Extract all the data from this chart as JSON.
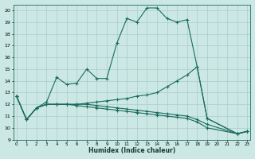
{
  "xlabel": "Humidex (Indice chaleur)",
  "bg_color": "#cce8e4",
  "grid_color": "#aaccca",
  "line_color": "#1a6b5e",
  "xlim": [
    0,
    23
  ],
  "ylim": [
    9,
    20.5
  ],
  "series0_x": [
    0,
    1,
    2,
    3,
    4,
    5,
    6,
    7,
    8,
    9,
    10,
    11,
    12,
    13,
    14,
    15,
    16,
    17,
    18,
    19,
    22,
    23
  ],
  "series0_y": [
    12.7,
    10.7,
    11.7,
    12.2,
    14.3,
    13.7,
    13.8,
    15.0,
    14.2,
    14.2,
    17.2,
    19.3,
    19.0,
    20.2,
    20.2,
    19.3,
    19.0,
    19.2,
    15.2,
    10.8,
    9.5,
    9.7
  ],
  "series1_x": [
    0,
    1,
    2,
    3,
    4,
    5,
    6,
    7,
    8,
    9,
    10,
    11,
    12,
    13,
    14,
    15,
    16,
    17,
    18,
    19,
    22,
    23
  ],
  "series1_y": [
    12.7,
    10.7,
    11.7,
    12.0,
    12.0,
    12.0,
    11.9,
    11.8,
    11.7,
    11.6,
    11.5,
    11.4,
    11.3,
    11.2,
    11.1,
    11.0,
    10.9,
    10.8,
    10.5,
    10.0,
    9.5,
    9.7
  ],
  "series2_x": [
    0,
    1,
    2,
    3,
    4,
    5,
    6,
    7,
    8,
    9,
    10,
    11,
    12,
    13,
    14,
    15,
    16,
    17,
    18,
    19,
    22,
    23
  ],
  "series2_y": [
    12.7,
    10.7,
    11.7,
    12.0,
    12.0,
    12.0,
    12.0,
    12.0,
    11.9,
    11.8,
    11.7,
    11.6,
    11.5,
    11.4,
    11.3,
    11.2,
    11.1,
    11.0,
    10.7,
    10.3,
    9.5,
    9.7
  ],
  "series3_x": [
    0,
    1,
    2,
    3,
    4,
    5,
    6,
    7,
    8,
    9,
    10,
    11,
    12,
    13,
    14,
    15,
    16,
    17,
    18,
    19,
    22,
    23
  ],
  "series3_y": [
    12.7,
    10.7,
    11.7,
    12.0,
    12.0,
    12.0,
    12.0,
    12.1,
    12.2,
    12.3,
    12.4,
    12.5,
    12.7,
    12.8,
    13.0,
    13.5,
    14.0,
    14.5,
    15.2,
    10.8,
    9.5,
    9.7
  ]
}
